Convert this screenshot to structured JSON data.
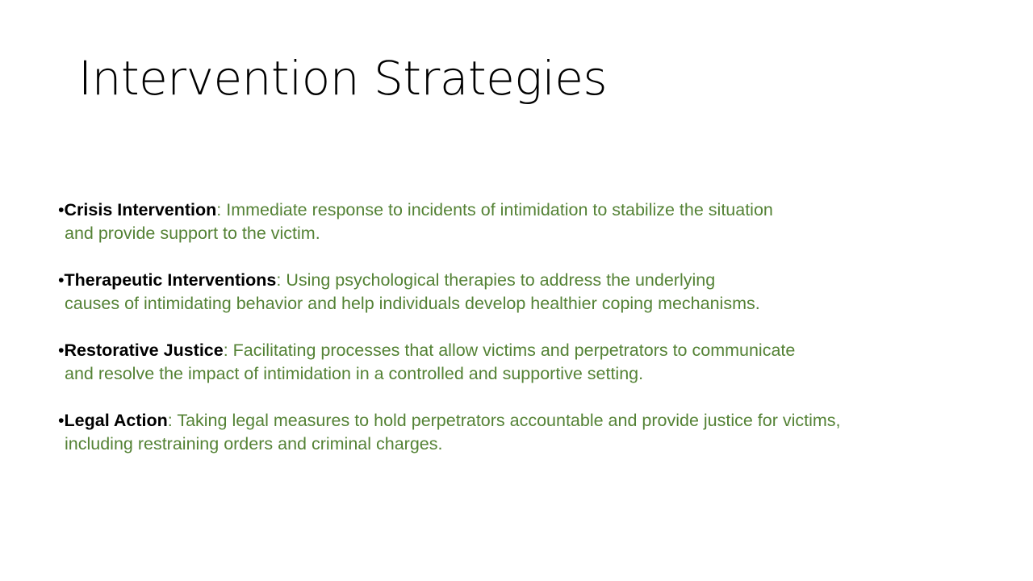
{
  "slide": {
    "title": "Intervention Strategies",
    "bullet_glyph": "•",
    "separator": ":",
    "colors": {
      "accent": "#548235",
      "term": "#000000",
      "title": "#000000",
      "background": "#ffffff"
    },
    "items": [
      {
        "term": "Crisis Intervention",
        "line1": " Immediate response to incidents of intimidation to stabilize the situation",
        "line2": "and provide support to the victim."
      },
      {
        "term": "Therapeutic Interventions",
        "line1": " Using psychological therapies to address the underlying",
        "line2": "causes of intimidating behavior and help individuals develop healthier coping mechanisms."
      },
      {
        "term": "Restorative Justice",
        "line1": " Facilitating processes that allow victims and perpetrators to communicate",
        "line2": "and resolve the impact of intimidation in a controlled and supportive setting."
      },
      {
        "term": "Legal Action",
        "line1": " Taking legal measures to hold perpetrators accountable and provide justice for victims,",
        "line2": "including restraining orders and criminal charges."
      }
    ]
  }
}
